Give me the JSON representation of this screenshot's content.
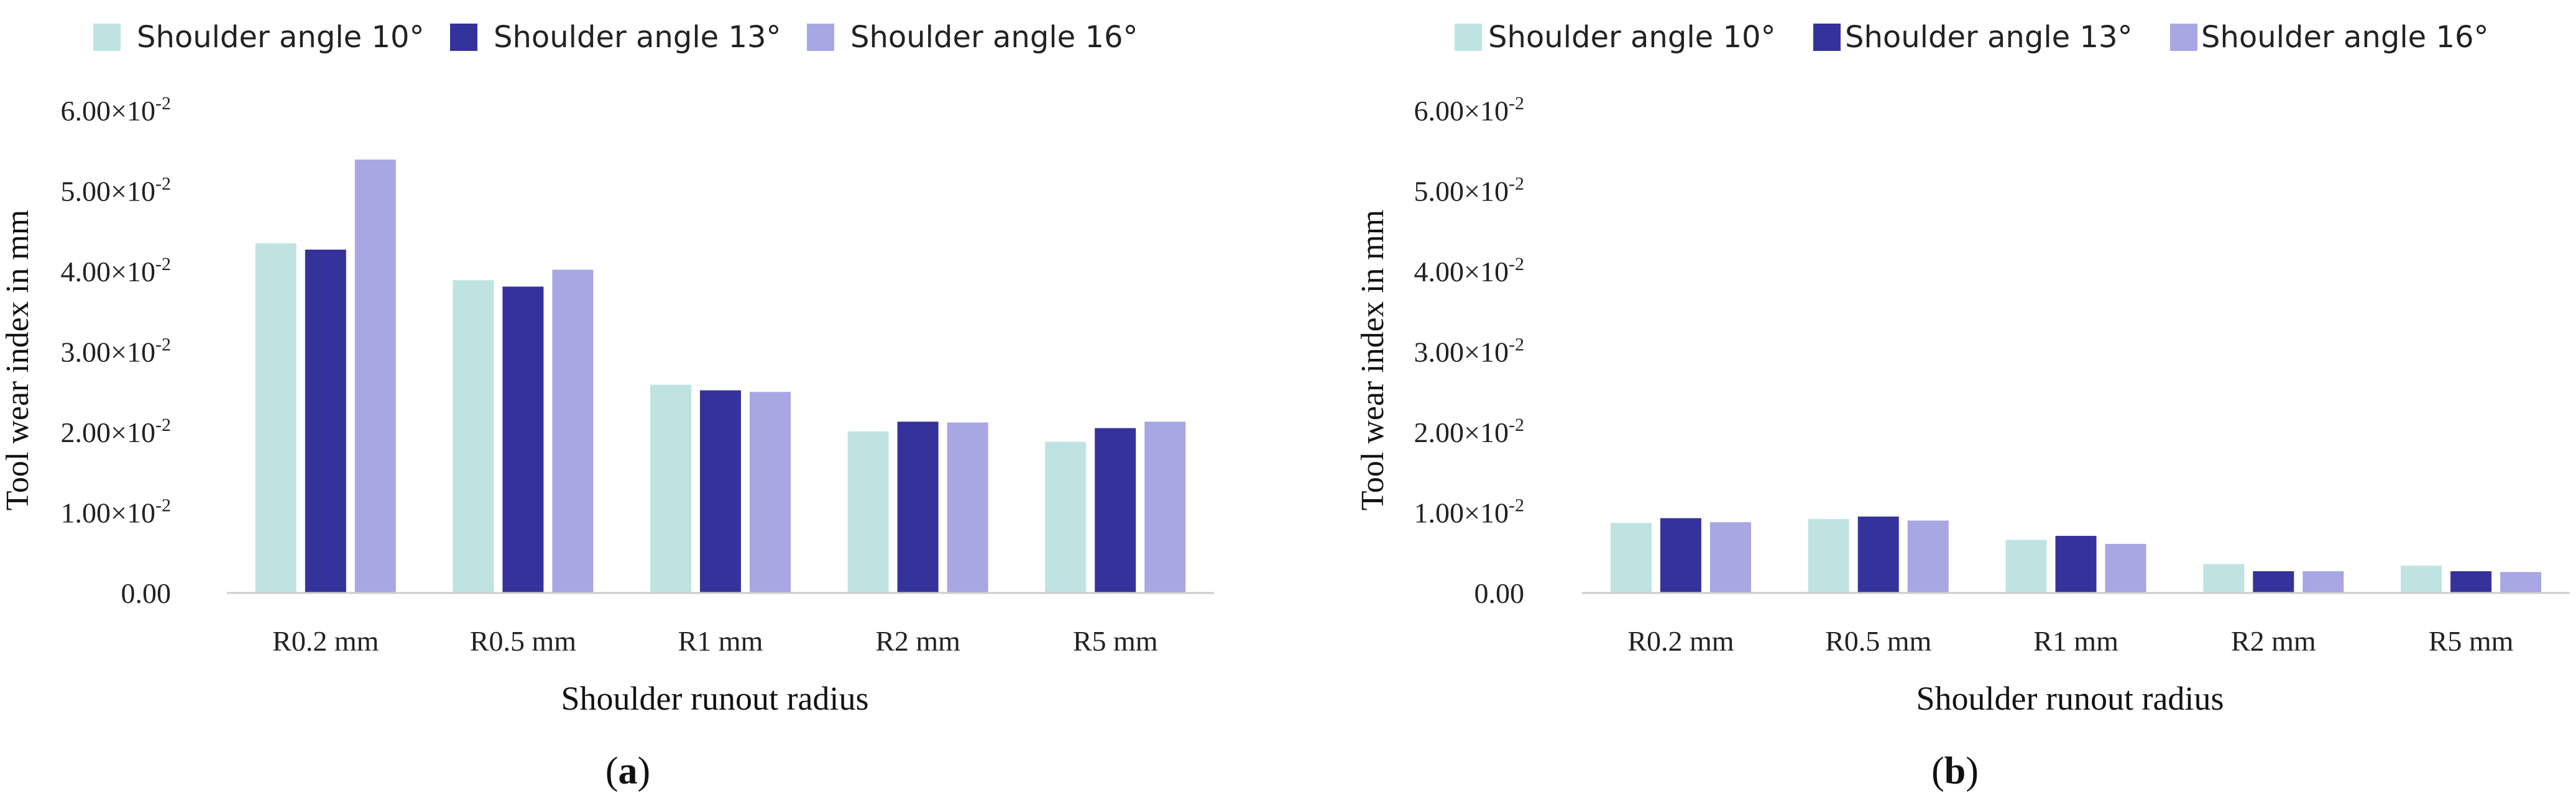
{
  "chart_data": [
    {
      "type": "bar",
      "panel_label": "a",
      "title": "",
      "xlabel": "Shoulder runout radius",
      "ylabel": "Tool wear index in mm",
      "categories": [
        "R0.2 mm",
        "R0.5 mm",
        "R1 mm",
        "R2 mm",
        "R5 mm"
      ],
      "series": [
        {
          "name": "Shoulder angle 10°",
          "color": "#bfe3e3",
          "values": [
            0.0435,
            0.0389,
            0.0259,
            0.0201,
            0.0188
          ]
        },
        {
          "name": "Shoulder angle 13°",
          "color": "#35339b",
          "values": [
            0.0427,
            0.0381,
            0.0252,
            0.0213,
            0.0205
          ]
        },
        {
          "name": "Shoulder angle 16°",
          "color": "#a7a7e3",
          "values": [
            0.0539,
            0.0402,
            0.025,
            0.0212,
            0.0213
          ]
        }
      ],
      "ylim": [
        0,
        0.06
      ],
      "yticks": [
        {
          "value": 0,
          "mantissa": "0.00",
          "exponent": ""
        },
        {
          "value": 0.01,
          "mantissa": "1.00×10",
          "exponent": "-2"
        },
        {
          "value": 0.02,
          "mantissa": "2.00×10",
          "exponent": "-2"
        },
        {
          "value": 0.03,
          "mantissa": "3.00×10",
          "exponent": "-2"
        },
        {
          "value": 0.04,
          "mantissa": "4.00×10",
          "exponent": "-2"
        },
        {
          "value": 0.05,
          "mantissa": "5.00×10",
          "exponent": "-2"
        },
        {
          "value": 0.06,
          "mantissa": "6.00×10",
          "exponent": "-2"
        }
      ],
      "legend_position": "top",
      "grid": false
    },
    {
      "type": "bar",
      "panel_label": "b",
      "title": "",
      "xlabel": "Shoulder runout radius",
      "ylabel": "Tool wear index in mm",
      "categories": [
        "R0.2 mm",
        "R0.5 mm",
        "R1 mm",
        "R2 mm",
        "R5 mm"
      ],
      "series": [
        {
          "name": "Shoulder angle 10°",
          "color": "#bfe3e3",
          "values": [
            0.0087,
            0.0092,
            0.0066,
            0.0036,
            0.0034
          ]
        },
        {
          "name": "Shoulder angle 13°",
          "color": "#35339b",
          "values": [
            0.0093,
            0.0095,
            0.0071,
            0.0027,
            0.0027
          ]
        },
        {
          "name": "Shoulder angle 16°",
          "color": "#a7a7e3",
          "values": [
            0.0088,
            0.009,
            0.0061,
            0.0027,
            0.0026
          ]
        }
      ],
      "ylim": [
        0,
        0.06
      ],
      "yticks": [
        {
          "value": 0,
          "mantissa": "0.00",
          "exponent": ""
        },
        {
          "value": 0.01,
          "mantissa": "1.00×10",
          "exponent": "-2"
        },
        {
          "value": 0.02,
          "mantissa": "2.00×10",
          "exponent": "-2"
        },
        {
          "value": 0.03,
          "mantissa": "3.00×10",
          "exponent": "-2"
        },
        {
          "value": 0.04,
          "mantissa": "4.00×10",
          "exponent": "-2"
        },
        {
          "value": 0.05,
          "mantissa": "5.00×10",
          "exponent": "-2"
        },
        {
          "value": 0.06,
          "mantissa": "6.00×10",
          "exponent": "-2"
        }
      ],
      "legend_position": "top",
      "grid": false
    }
  ]
}
